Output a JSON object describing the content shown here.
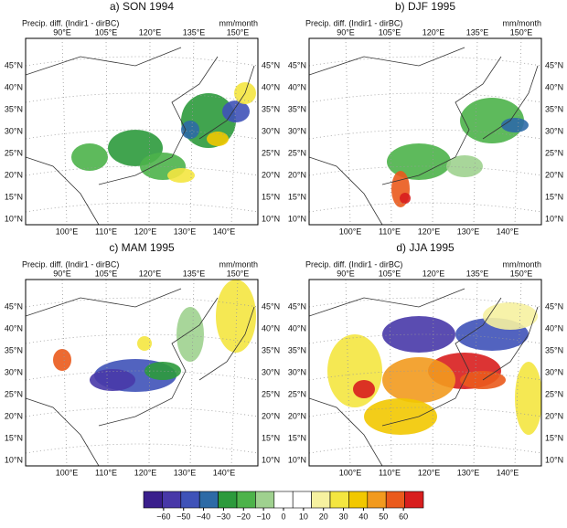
{
  "panels": [
    {
      "title": "a) SON 1994",
      "label_left": "Precip. diff. (Indir1 - dirBC)",
      "label_right": "mm/month"
    },
    {
      "title": "b) DJF 1995",
      "label_left": "Precip. diff. (Indir1 - dirBC)",
      "label_right": "mm/month"
    },
    {
      "title": "c) MAM 1995",
      "label_left": "Precip. diff. (Indir1 - dirBC)",
      "label_right": "mm/month"
    },
    {
      "title": "d) JJA 1995",
      "label_left": "Precip. diff. (Indir1 - dirBC)",
      "label_right": "mm/month"
    }
  ],
  "lon_top": [
    "90°E",
    "105°E",
    "120°E",
    "135°E",
    "150°E"
  ],
  "lon_bottom": [
    "100°E",
    "110°E",
    "120°E",
    "130°E",
    "140°E"
  ],
  "lat": [
    "45°N",
    "40°N",
    "35°N",
    "30°N",
    "25°N",
    "20°N",
    "15°N",
    "10°N"
  ],
  "colorbar": {
    "colors": [
      "#3a1f8c",
      "#4838a8",
      "#3f52b8",
      "#2d6aa6",
      "#2c9a3c",
      "#4db34a",
      "#9fd18f",
      "#ffffff",
      "#ffffff",
      "#f6f1a0",
      "#f4e640",
      "#f2c800",
      "#f29a1e",
      "#ea5a1c",
      "#d81e1e"
    ],
    "ticks": [
      {
        "value": -60,
        "label": "−60"
      },
      {
        "value": -50,
        "label": "−50"
      },
      {
        "value": -40,
        "label": "−40"
      },
      {
        "value": -30,
        "label": "−30"
      },
      {
        "value": -20,
        "label": "−20"
      },
      {
        "value": -10,
        "label": "−10"
      },
      0,
      10,
      20,
      30,
      40,
      50,
      60
    ]
  }
}
